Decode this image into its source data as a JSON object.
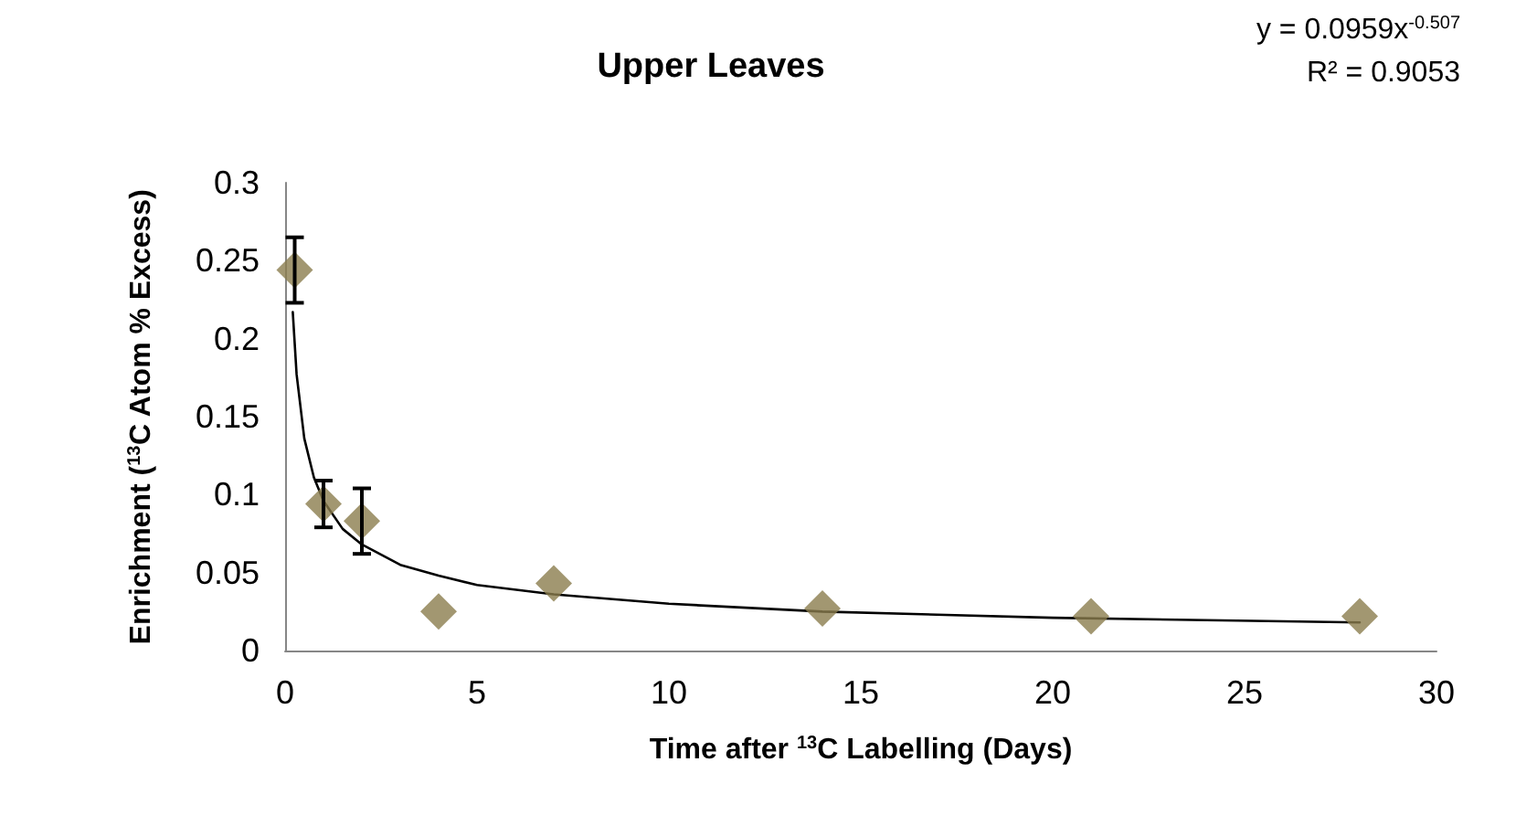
{
  "chart_data": {
    "type": "scatter",
    "title": "Upper Leaves",
    "xlabel": "Time after $^{13}$C Labelling (Days)",
    "ylabel": "Enrichment ($^{13}$C Atom % Excess)",
    "annotations": [
      "y = 0.0959x$^{-0.507}$",
      "R² = 0.9053"
    ],
    "xlim": [
      0,
      30
    ],
    "xticks": [
      0,
      5,
      10,
      15,
      20,
      25,
      30
    ],
    "ylim": [
      0,
      0.3
    ],
    "yticks": [
      0,
      0.05,
      0.1,
      0.15,
      0.2,
      0.25,
      0.3
    ],
    "grid": false,
    "marker": "diamond",
    "series": [
      {
        "color": "#8b7d4e",
        "x": [
          0.25,
          1,
          2,
          4,
          7,
          14,
          21,
          28
        ],
        "values": [
          0.244,
          0.094,
          0.083,
          0.025,
          0.043,
          0.027,
          0.022,
          0.022
        ],
        "errors": [
          0.021,
          0.015,
          0.021,
          null,
          null,
          null,
          null,
          null
        ]
      },
      {
        "type": "line",
        "color": "#000000",
        "marker": "none",
        "line_style": "solid",
        "x": [
          0.2,
          0.3,
          0.5,
          0.75,
          1,
          1.5,
          2,
          3,
          4,
          5,
          7,
          10,
          14,
          20,
          28
        ],
        "values": [
          0.217,
          0.177,
          0.136,
          0.111,
          0.096,
          0.078,
          0.068,
          0.055,
          0.048,
          0.042,
          0.036,
          0.03,
          0.025,
          0.021,
          0.018
        ]
      }
    ]
  }
}
